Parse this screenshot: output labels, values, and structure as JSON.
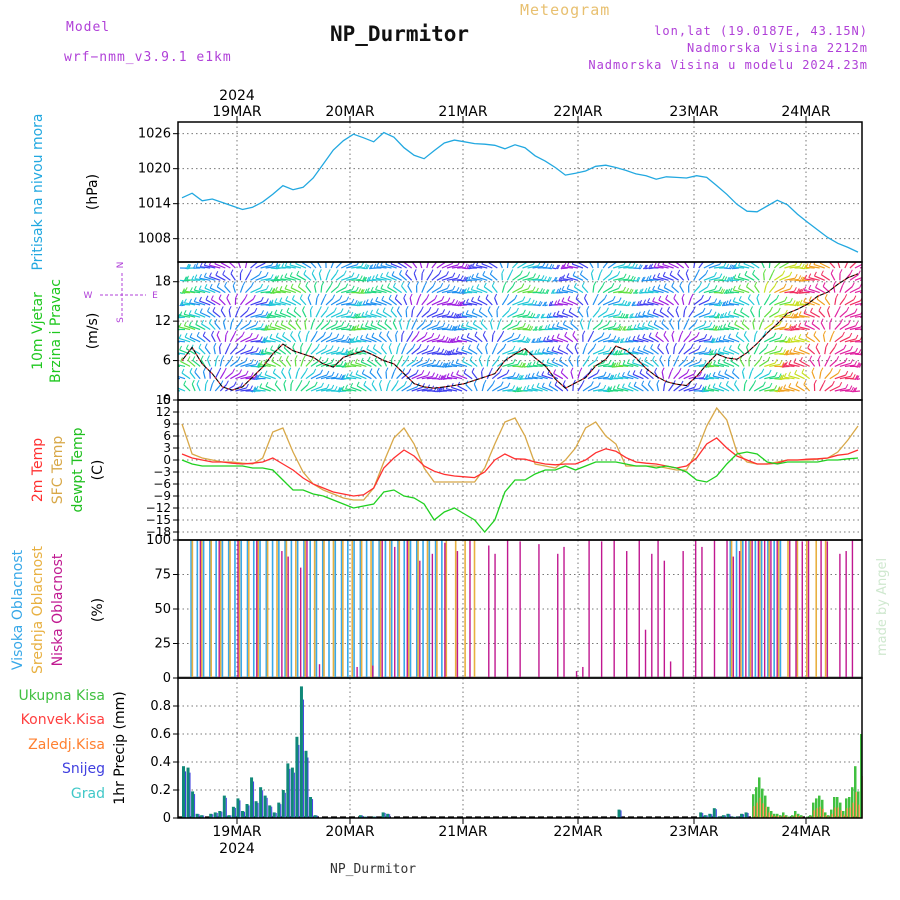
{
  "header": {
    "model_label": "Model",
    "model_name": "wrf−nmm_v3.9.1 e1km",
    "meteogram_label": "Meteogram",
    "station": "NP_Durmitor",
    "lonlat": "lon,lat (19.0187E, 43.15N)",
    "altitude": "Nadmorska Visina 2212m",
    "model_altitude": "Nadmorska Visina u modelu 2024.23m"
  },
  "time_axis": {
    "top_year": "2024",
    "bottom_year": "2024",
    "days": [
      "19MAR",
      "20MAR",
      "21MAR",
      "22MAR",
      "23MAR",
      "24MAR"
    ]
  },
  "footer": {
    "station": "NP_Durmitor",
    "credit": "made by Angel"
  },
  "colors": {
    "pressure": "#22a8e0",
    "t2m": "#ff3030",
    "sfc": "#d8a848",
    "dew": "#20d020",
    "high_cloud": "#38a8e8",
    "mid_cloud": "#e8b040",
    "low_cloud": "#c01890",
    "total_precip": "#40c040",
    "conv_precip": "#ff4040",
    "freezing": "#ff8030",
    "snow": "#4040e0",
    "hail": "#40c8c8"
  },
  "chart_data": [
    {
      "type": "line",
      "ylabel_left": "Pritisak na nivou mora",
      "ylabel": "(hPa)",
      "ylim": [
        1004,
        1028
      ],
      "yticks": [
        "1026",
        "1020",
        "1014",
        "1008"
      ],
      "series": [
        {
          "values": [
            1015,
            1015.8,
            1014.5,
            1014.8,
            1014.2,
            1013.6,
            1013,
            1013.4,
            1014.3,
            1015.6,
            1017.1,
            1016.4,
            1016.8,
            1018.4,
            1020.8,
            1023.2,
            1024.8,
            1025.9,
            1025.3,
            1024.6,
            1026.2,
            1025.4,
            1023.6,
            1022.3,
            1021.7,
            1023.1,
            1024.4,
            1024.9,
            1024.6,
            1024.3,
            1024.2,
            1024.0,
            1023.4,
            1024.1,
            1023.6,
            1022.2,
            1021.3,
            1020.2,
            1018.9,
            1019.2,
            1019.6,
            1020.4,
            1020.6,
            1020.2,
            1019.7,
            1019.1,
            1018.8,
            1018.2,
            1018.6,
            1018.5,
            1018.4,
            1018.8,
            1018.5,
            1017.1,
            1015.6,
            1013.9,
            1012.7,
            1012.6,
            1013.6,
            1014.6,
            1013.8,
            1012.2,
            1010.8,
            1009.5,
            1008.2,
            1007.2,
            1006.5,
            1005.7
          ]
        }
      ]
    },
    {
      "type": "line",
      "ylabel_left": [
        "10m Vjetar",
        "Brzina i Pravac"
      ],
      "ylabel": "(m/s)",
      "ylim": [
        0,
        21
      ],
      "yticks": [
        "18",
        "12",
        "6",
        "0"
      ],
      "compass": {
        "n": "N",
        "e": "E",
        "w": "W",
        "s": "S"
      },
      "series": [
        {
          "values": [
            6,
            8,
            5.5,
            4,
            2,
            1.5,
            2,
            3.5,
            5,
            7,
            8.5,
            7.5,
            7,
            6.5,
            5.5,
            5,
            6.5,
            7,
            7.5,
            6.8,
            6,
            5.5,
            4,
            2.5,
            2,
            1.8,
            2,
            2.2,
            2.5,
            3,
            3.5,
            4,
            6,
            7,
            7.8,
            6.4,
            5.2,
            3.2,
            1.8,
            2.6,
            3.4,
            5.2,
            6.2,
            8.2,
            7.6,
            6.4,
            4.8,
            3.6,
            2.8,
            2.4,
            2.2,
            3.6,
            5.4,
            7,
            6.4,
            6.2,
            7.2,
            8.6,
            10.2,
            11.6,
            13.2,
            13.8,
            14.6,
            15.8,
            16.4,
            17.6,
            18.6,
            19.2
          ]
        }
      ]
    },
    {
      "type": "line",
      "ylabel_left": [
        "2m Temp",
        "SFC Temp",
        "dewpt Temp"
      ],
      "ylabel": "(C)",
      "ylim": [
        -20,
        15
      ],
      "yticks": [
        "15",
        "12",
        "9",
        "6",
        "3",
        "0",
        "−3",
        "−6",
        "−9",
        "−12",
        "−15",
        "−18"
      ],
      "series": [
        {
          "name": "2m Temp",
          "values": [
            1.5,
            0.5,
            0,
            -0.5,
            -0.5,
            -0.8,
            -1,
            -0.8,
            -0.5,
            0.5,
            -1,
            -2.5,
            -4.5,
            -6,
            -7,
            -8,
            -8.5,
            -9,
            -8.7,
            -7,
            -2,
            0.5,
            2.5,
            1,
            -1.5,
            -2.8,
            -3.6,
            -4,
            -4.2,
            -4.4,
            -3,
            0,
            1.5,
            0.3,
            0.2,
            -0.5,
            -1,
            -1.2,
            -1,
            -1,
            0,
            1.8,
            2.8,
            2.2,
            0.6,
            -0.5,
            -0.8,
            -1,
            -1.5,
            -2,
            -1.5,
            0.5,
            4,
            5.5,
            3,
            1,
            0,
            -1,
            -1,
            -0.8,
            0,
            0,
            0.2,
            0.3,
            0.5,
            1.2,
            1.5,
            2.5
          ]
        },
        {
          "name": "SFC Temp",
          "values": [
            9,
            1.5,
            0.5,
            0,
            -0.5,
            -0.5,
            -0.8,
            -1,
            0.5,
            7,
            8,
            2,
            -3,
            -6,
            -7.5,
            -8.5,
            -9.5,
            -10,
            -10,
            -7,
            -0.5,
            5.5,
            8,
            4,
            -2,
            -5.5,
            -5.5,
            -5.5,
            -5.5,
            -5.5,
            -2,
            4,
            9.5,
            10.5,
            6,
            -1,
            -1.5,
            -2,
            0,
            3,
            8,
            9.5,
            6,
            4,
            -1.5,
            -1.5,
            -1.5,
            -1.5,
            -2,
            -2.5,
            -2.5,
            2,
            8.5,
            13,
            10,
            2,
            -0.5,
            -1,
            -1,
            -0.5,
            0,
            0,
            0,
            0.2,
            0.5,
            2,
            5,
            8.5
          ]
        },
        {
          "name": "dewpt Temp",
          "values": [
            0,
            -1,
            -1.5,
            -1.5,
            -1.5,
            -1.5,
            -1.5,
            -2,
            -2,
            -2.5,
            -5,
            -7.5,
            -7.5,
            -8.5,
            -9,
            -10,
            -11,
            -12,
            -11.5,
            -11,
            -8,
            -7.5,
            -9,
            -9.5,
            -11,
            -15,
            -13,
            -12,
            -13.5,
            -15,
            -18,
            -15,
            -8,
            -5,
            -5,
            -3.5,
            -2.5,
            -2.5,
            -1.5,
            -2.5,
            -1.5,
            -0.5,
            -0.5,
            -0.5,
            -1,
            -1.5,
            -1.5,
            -2,
            -1.5,
            -2,
            -3,
            -5,
            -5.5,
            -4,
            -1,
            1.5,
            2,
            1.5,
            -0.5,
            -1,
            -0.5,
            -0.5,
            -0.5,
            -0.5,
            0,
            0,
            0.3,
            0.5
          ]
        }
      ]
    },
    {
      "type": "bar",
      "ylabel_left": [
        "Visoka Oblacnost",
        "Srednja Oblacnost",
        "Niska Oblacnost"
      ],
      "ylabel": "(%)",
      "ylim": [
        0,
        100
      ],
      "yticks": [
        "100",
        "75",
        "50",
        "25",
        "0"
      ],
      "series": [
        {
          "name": "Visoka Oblacnost",
          "segments": [
            [
              0.5,
              26,
              100
            ],
            [
              54.5,
              59.5,
              100
            ],
            [
              79.5,
              83,
              100
            ]
          ]
        },
        {
          "name": "Srednja Oblacnost",
          "segments": [
            [
              0.5,
              29.5,
              100
            ],
            [
              54.5,
              64,
              100
            ],
            [
              78.5,
              85.5,
              100
            ]
          ]
        },
        {
          "name": "Niska Oblacnost",
          "bars": [
            [
              5,
              100
            ],
            [
              11,
              100
            ],
            [
              17,
              100
            ],
            [
              23,
              100
            ],
            [
              31,
              92
            ],
            [
              33,
              88
            ],
            [
              37,
              80
            ],
            [
              39,
              100
            ],
            [
              43,
              10
            ],
            [
              55,
              8
            ],
            [
              60,
              9
            ],
            [
              63,
              100
            ],
            [
              67,
              95
            ],
            [
              71,
              100
            ],
            [
              75,
              85
            ],
            [
              79,
              90
            ],
            [
              83,
              98
            ],
            [
              87,
              92
            ],
            [
              91,
              100
            ],
            [
              97,
              96
            ],
            [
              99,
              90
            ],
            [
              103,
              100
            ],
            [
              107,
              99
            ],
            [
              113,
              97
            ],
            [
              119,
              90
            ],
            [
              121,
              95
            ],
            [
              125,
              5
            ],
            [
              127,
              8
            ],
            [
              129,
              100
            ],
            [
              133,
              99
            ],
            [
              137,
              100
            ],
            [
              141,
              92
            ],
            [
              145,
              100
            ],
            [
              149,
              90
            ],
            [
              151,
              100
            ],
            [
              153,
              85
            ],
            [
              147,
              35
            ],
            [
              155,
              12
            ],
            [
              159,
              92
            ],
            [
              163,
              100
            ],
            [
              165,
              95
            ],
            [
              169,
              100
            ],
            [
              173,
              100
            ],
            [
              175,
              88
            ],
            [
              177,
              92
            ],
            [
              179,
              100
            ],
            [
              181,
              100
            ],
            [
              183,
              100
            ],
            [
              185,
              100
            ],
            [
              187,
              100
            ],
            [
              189,
              100
            ],
            [
              193,
              100
            ],
            [
              195,
              100
            ],
            [
              197,
              99
            ],
            [
              199,
              100
            ],
            [
              203,
              100
            ],
            [
              205,
              99
            ],
            [
              209,
              90
            ],
            [
              211,
              92
            ],
            [
              213,
              100
            ]
          ]
        }
      ]
    },
    {
      "type": "bar",
      "ylabel_left": [
        "Ukupna Kisa",
        "Konvek.Kisa",
        "Zaledj.Kisa",
        "Snijeg",
        "Grad"
      ],
      "ylabel": "1hr Precip (mm)",
      "ylim": [
        0,
        1.0
      ],
      "yticks": [
        "0.8",
        "0.6",
        "0.4",
        "0.2",
        "0"
      ],
      "series": [
        {
          "name": "Snijeg",
          "values": [
            0.37,
            0.36,
            0.19,
            0.03,
            0.02,
            0,
            0.03,
            0.04,
            0.05,
            0.16,
            0.02,
            0.08,
            0.14,
            0.05,
            0.1,
            0.29,
            0.12,
            0.22,
            0.16,
            0.09,
            0.04,
            0.11,
            0.2,
            0.39,
            0.36,
            0.58,
            0.94,
            0.48,
            0.15,
            0.02,
            0,
            0,
            0,
            0,
            0,
            0,
            0,
            0,
            0,
            0.02,
            0.01,
            0,
            0.01,
            0,
            0.04,
            0.03,
            0,
            0,
            0,
            0,
            0,
            0,
            0,
            0,
            0,
            0,
            0,
            0,
            0,
            0,
            0,
            0,
            0,
            0,
            0,
            0,
            0,
            0,
            0,
            0,
            0,
            0,
            0,
            0,
            0,
            0,
            0,
            0,
            0,
            0,
            0,
            0,
            0,
            0,
            0,
            0,
            0,
            0,
            0,
            0,
            0,
            0,
            0,
            0,
            0,
            0,
            0.06,
            0,
            0,
            0,
            0,
            0,
            0,
            0,
            0,
            0,
            0,
            0,
            0,
            0,
            0,
            0,
            0,
            0,
            0.04,
            0.02,
            0.03,
            0.07,
            0.01,
            0.02,
            0.03,
            0.01,
            0.01,
            0.03,
            0.04,
            0,
            0,
            0,
            0,
            0,
            0,
            0,
            0,
            0,
            0,
            0,
            0,
            0,
            0,
            0,
            0,
            0,
            0,
            0,
            0,
            0,
            0,
            0,
            0,
            0
          ]
        },
        {
          "name": "Ukupna Kisa",
          "values": [
            0.17,
            0.22,
            0.29,
            0.21,
            0.16,
            0.08,
            0.05,
            0.03,
            0.03,
            0.02,
            0.04,
            0.02,
            0.01,
            0.02,
            0.05,
            0.03,
            0.02,
            0,
            0.01,
            0.02,
            0.11,
            0.14,
            0.16,
            0.13,
            0.04,
            0.02,
            0.06,
            0.15,
            0.15,
            0.11,
            0.05,
            0.14,
            0.15,
            0.22,
            0.37,
            0.19,
            0.6
          ]
        }
      ]
    }
  ]
}
